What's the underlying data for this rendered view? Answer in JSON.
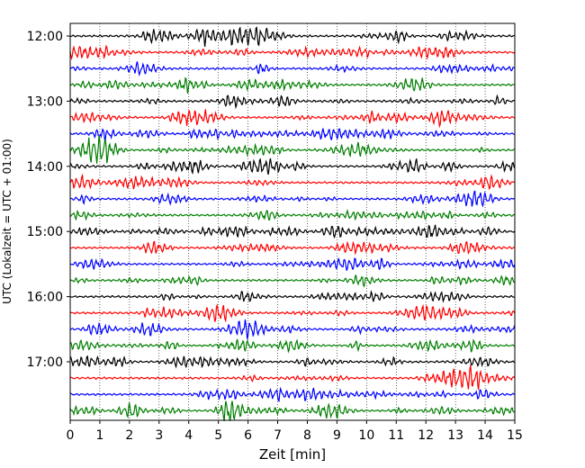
{
  "chart_data": {
    "type": "line",
    "title": "",
    "xlabel": "Zeit  [min]",
    "ylabel": "UTC (Lokalzeit = UTC + 01:00)",
    "xlim": [
      0,
      15
    ],
    "x_ticks": [
      "0",
      "1",
      "2",
      "3",
      "4",
      "5",
      "6",
      "7",
      "8",
      "9",
      "10",
      "11",
      "12",
      "13",
      "14",
      "15"
    ],
    "y_ticks": [
      "12:00",
      "13:00",
      "14:00",
      "15:00",
      "16:00",
      "17:00"
    ],
    "grid": "vertical-dotted",
    "minutes_per_trace": 15,
    "trace_start": "12:00",
    "trace_count": 24,
    "series_colors": [
      "#000000",
      "#ff0000",
      "#0000ff",
      "#007f00"
    ],
    "note_rows": [
      "12:00",
      "12:15",
      "12:30",
      "12:45",
      "13:00",
      "13:15",
      "13:30",
      "13:45",
      "14:00",
      "14:15",
      "14:30",
      "14:45",
      "15:00",
      "15:15",
      "15:30",
      "15:45",
      "16:00",
      "16:15",
      "16:30",
      "16:45",
      "17:00",
      "17:15",
      "17:30",
      "17:45"
    ]
  }
}
